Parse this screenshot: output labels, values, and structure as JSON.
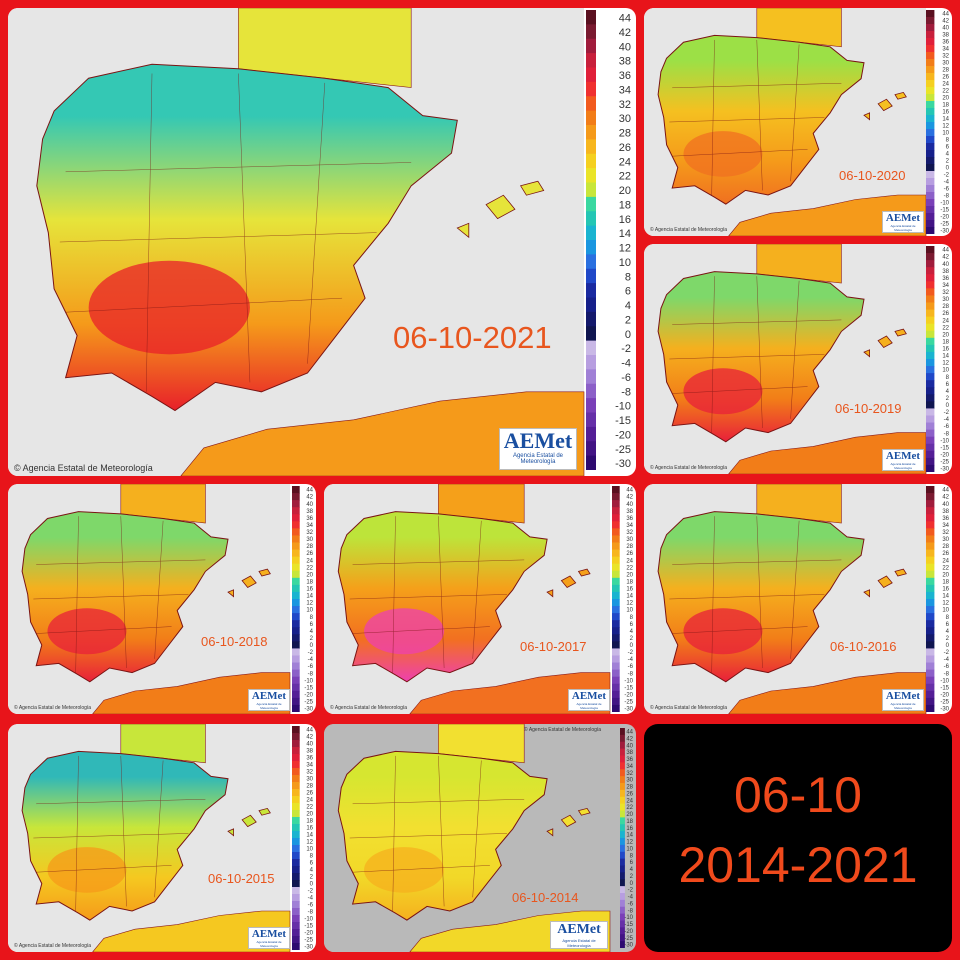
{
  "collage": {
    "panels": [
      {
        "id": "p2021",
        "date": "06-10-2021",
        "copyright": "Agencia Estatal de Meteorología",
        "logo": "AEMet",
        "logo_sub": "Agencia Estatal de Meteorología",
        "palette": "cool-north",
        "background": "#ffffff"
      },
      {
        "id": "p2020",
        "date": "06-10-2020",
        "copyright": "Agencia Estatal de Meteorología",
        "logo": "AEMet",
        "logo_sub": "Agencia Estatal de Meteorología",
        "palette": "warm",
        "background": "#ffffff"
      },
      {
        "id": "p2019",
        "date": "06-10-2019",
        "copyright": "Agencia Estatal de Meteorología",
        "logo": "AEMet",
        "logo_sub": "Agencia Estatal de Meteorología",
        "palette": "hot",
        "background": "#ffffff"
      },
      {
        "id": "p2018",
        "date": "06-10-2018",
        "copyright": "Agencia Estatal de Meteorología",
        "logo": "AEMet",
        "logo_sub": "Agencia Estatal de Meteorología",
        "palette": "hot",
        "background": "#ffffff"
      },
      {
        "id": "p2017",
        "date": "06-10-2017",
        "copyright": "Agencia Estatal de Meteorología",
        "logo": "AEMet",
        "logo_sub": "Agencia Estatal de Meteorología",
        "palette": "extreme",
        "background": "#ffffff"
      },
      {
        "id": "p2016",
        "date": "06-10-2016",
        "copyright": "Agencia Estatal de Meteorología",
        "logo": "AEMet",
        "logo_sub": "Agencia Estatal de Meteorología",
        "palette": "hot",
        "background": "#ffffff"
      },
      {
        "id": "p2015",
        "date": "06-10-2015",
        "copyright": "Agencia Estatal de Meteorología",
        "logo": "AEMet",
        "logo_sub": "Agencia Estatal de Meteorología",
        "palette": "cool-west",
        "background": "#ffffff"
      },
      {
        "id": "p2014",
        "date": "06-10-2014",
        "copyright": "Agencia Estatal de Meteorología",
        "logo": "AEMet",
        "logo_sub": "Agencia Estatal de Meteorología",
        "palette": "mild",
        "background": "#b9b9b9"
      }
    ],
    "legend_values": [
      "44",
      "42",
      "40",
      "38",
      "36",
      "34",
      "32",
      "30",
      "28",
      "26",
      "24",
      "22",
      "20",
      "18",
      "16",
      "14",
      "12",
      "10",
      "8",
      "6",
      "4",
      "2",
      "0",
      "-2",
      "-4",
      "-6",
      "-8",
      "-10",
      "-15",
      "-20",
      "-25",
      "-30"
    ],
    "legend_colors": [
      "#5a1020",
      "#7a1a30",
      "#a01c3c",
      "#c8203c",
      "#e0203a",
      "#f03030",
      "#f25a1e",
      "#f27d18",
      "#f59a1a",
      "#f7b61e",
      "#f5d020",
      "#eae428",
      "#c8e63a",
      "#3ad8a0",
      "#24c6b4",
      "#1ab4d0",
      "#1a96e0",
      "#2a70e0",
      "#2048c8",
      "#1a2aa0",
      "#16208a",
      "#141a6c",
      "#101650",
      "#c9b8e6",
      "#b79ee0",
      "#a080d6",
      "#8c60c8",
      "#7a40b8",
      "#6630a8",
      "#541e96",
      "#421484",
      "#2e0a70"
    ],
    "summary": {
      "line1": "06-10",
      "line2": "2014-2021"
    }
  }
}
